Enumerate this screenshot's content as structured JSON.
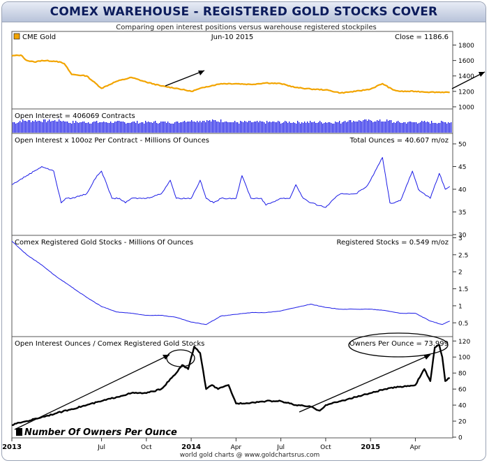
{
  "title": "COMEX WAREHOUSE - REGISTERED GOLD STOCKS COVER",
  "subtitle": "Comparing open interest positions versus warehouse registered stockpiles",
  "footer": "world gold charts @ www.goldchartsrus.com",
  "colors": {
    "gold": "#f2a400",
    "blue": "#1a1ae6",
    "black": "#000000",
    "frame": "#9aa3b5",
    "title_text": "#0c1c5c"
  },
  "x_axis": {
    "start": "2013-01",
    "end": "2015-06",
    "ticks": [
      {
        "label": "2013",
        "month": 0,
        "bold": true
      },
      {
        "label": "Jul",
        "month": 6,
        "bold": false
      },
      {
        "label": "Oct",
        "month": 9,
        "bold": false
      },
      {
        "label": "2014",
        "month": 12,
        "bold": true
      },
      {
        "label": "Apr",
        "month": 15,
        "bold": false
      },
      {
        "label": "Jul",
        "month": 18,
        "bold": false
      },
      {
        "label": "Oct",
        "month": 21,
        "bold": false
      },
      {
        "label": "2015",
        "month": 24,
        "bold": true
      },
      {
        "label": "Apr",
        "month": 27,
        "bold": false
      }
    ]
  },
  "chart_data": [
    {
      "type": "line",
      "legend": "CME Gold",
      "date_label": "Jun-10  2015",
      "readout": "Close = 1186.6",
      "ylim": [
        900,
        1850
      ],
      "yticks": [
        1000,
        1200,
        1400,
        1600,
        1800
      ],
      "series": [
        {
          "name": "CME Gold",
          "color": "#f2a400",
          "x_month": [
            0,
            0.6,
            1,
            1.5,
            2,
            3,
            3.5,
            4,
            5,
            6,
            7,
            8,
            9,
            10,
            11,
            12,
            13,
            14,
            15,
            16,
            17,
            18,
            19,
            20,
            21,
            22,
            23,
            24,
            24.8,
            25.5,
            26,
            27,
            28,
            29,
            29.3
          ],
          "values": [
            1660,
            1670,
            1600,
            1580,
            1600,
            1590,
            1560,
            1420,
            1400,
            1240,
            1330,
            1380,
            1320,
            1270,
            1240,
            1200,
            1260,
            1300,
            1300,
            1290,
            1310,
            1300,
            1250,
            1230,
            1220,
            1180,
            1200,
            1230,
            1300,
            1220,
            1200,
            1200,
            1190,
            1190,
            1187
          ]
        }
      ]
    },
    {
      "type": "bar",
      "title": "Open Interest = 406069 Contracts",
      "note": "daily open interest columns, heights fluctuating slightly",
      "series": [
        {
          "name": "Open Interest",
          "color": "#1a1ae6"
        }
      ]
    },
    {
      "type": "line",
      "title": "Open Interest x 100oz Per Contract - Millions Of Ounces",
      "readout": "Total Ounces = 40.607 m/oz",
      "ylim": [
        30,
        52
      ],
      "yticks": [
        30,
        35,
        40,
        45,
        50
      ],
      "series": [
        {
          "name": "Total Ounces",
          "color": "#1a1ae6",
          "x_month": [
            0,
            0.5,
            1,
            1.5,
            2,
            2.8,
            3.3,
            3.6,
            4,
            5,
            5.7,
            6,
            6.7,
            7.2,
            7.6,
            8,
            9,
            10,
            10.6,
            11,
            12,
            12.6,
            13,
            13.5,
            14,
            15,
            15.4,
            16,
            16.7,
            17,
            18,
            18.6,
            19,
            19.5,
            20,
            21,
            21.6,
            22,
            23,
            23.7,
            24,
            24.8,
            25.3,
            25.6,
            26,
            26.8,
            27.2,
            27.6,
            28,
            28.6,
            29,
            29.3
          ],
          "values": [
            41,
            42,
            43,
            44,
            45,
            44,
            37,
            38,
            38,
            39,
            43,
            44,
            38,
            38,
            37,
            38,
            38,
            39,
            42,
            38,
            38,
            42,
            38,
            37,
            38,
            38,
            43,
            38,
            38,
            36.5,
            38,
            38,
            41,
            38,
            37,
            36,
            38,
            39,
            39,
            40.5,
            42,
            47,
            37,
            37,
            37.5,
            44,
            40,
            39,
            38,
            43.5,
            40,
            40.6
          ]
        }
      ]
    },
    {
      "type": "line",
      "title": "Comex Registered Gold Stocks - Millions Of Ounces",
      "readout": "Registered Stocks = 0.549 m/oz",
      "ylim": [
        0.3,
        3.05
      ],
      "yticks": [
        0.5,
        1,
        1.5,
        2,
        2.5,
        3
      ],
      "series": [
        {
          "name": "Registered Stocks",
          "color": "#1a1ae6",
          "x_month": [
            0,
            0.5,
            1,
            2,
            3,
            4,
            5,
            6,
            7,
            8,
            9,
            10,
            11,
            12,
            13,
            14,
            15,
            16,
            17,
            18,
            19,
            20,
            21,
            22,
            23,
            24,
            25,
            26,
            27,
            28,
            28.8,
            29.3
          ],
          "values": [
            2.9,
            2.7,
            2.5,
            2.2,
            1.85,
            1.55,
            1.25,
            0.98,
            0.82,
            0.78,
            0.72,
            0.72,
            0.66,
            0.52,
            0.45,
            0.7,
            0.75,
            0.8,
            0.8,
            0.85,
            0.95,
            1.05,
            0.95,
            0.9,
            0.9,
            0.9,
            0.86,
            0.78,
            0.78,
            0.55,
            0.45,
            0.55
          ]
        }
      ]
    },
    {
      "type": "line",
      "title": "Open Interest Ounces / Comex Registered Gold Stocks",
      "readout": "Owners Per Ounce = 73.999",
      "annotation": "Number Of Owners Per Ounce",
      "ylim": [
        0,
        122
      ],
      "yticks": [
        0,
        20,
        40,
        60,
        80,
        100,
        120
      ],
      "series": [
        {
          "name": "Owners Per Ounce",
          "color": "#000000",
          "x_month": [
            0,
            0.5,
            1,
            2,
            3,
            4,
            5,
            6,
            7,
            8,
            9,
            10,
            11,
            11.4,
            11.8,
            12.2,
            12.6,
            13,
            13.4,
            13.8,
            14.5,
            15,
            16,
            17,
            18,
            19,
            20,
            20.6,
            21,
            22,
            23,
            24,
            25,
            26,
            27,
            27.6,
            28,
            28.3,
            28.6,
            28.8,
            29,
            29.3
          ],
          "values": [
            15,
            18,
            20,
            25,
            30,
            35,
            40,
            45,
            50,
            55,
            55,
            60,
            80,
            90,
            85,
            113,
            105,
            60,
            65,
            60,
            65,
            42,
            43,
            45,
            45,
            40,
            38,
            33,
            40,
            45,
            50,
            55,
            60,
            63,
            65,
            85,
            70,
            112,
            115,
            100,
            70,
            74
          ]
        }
      ]
    }
  ]
}
